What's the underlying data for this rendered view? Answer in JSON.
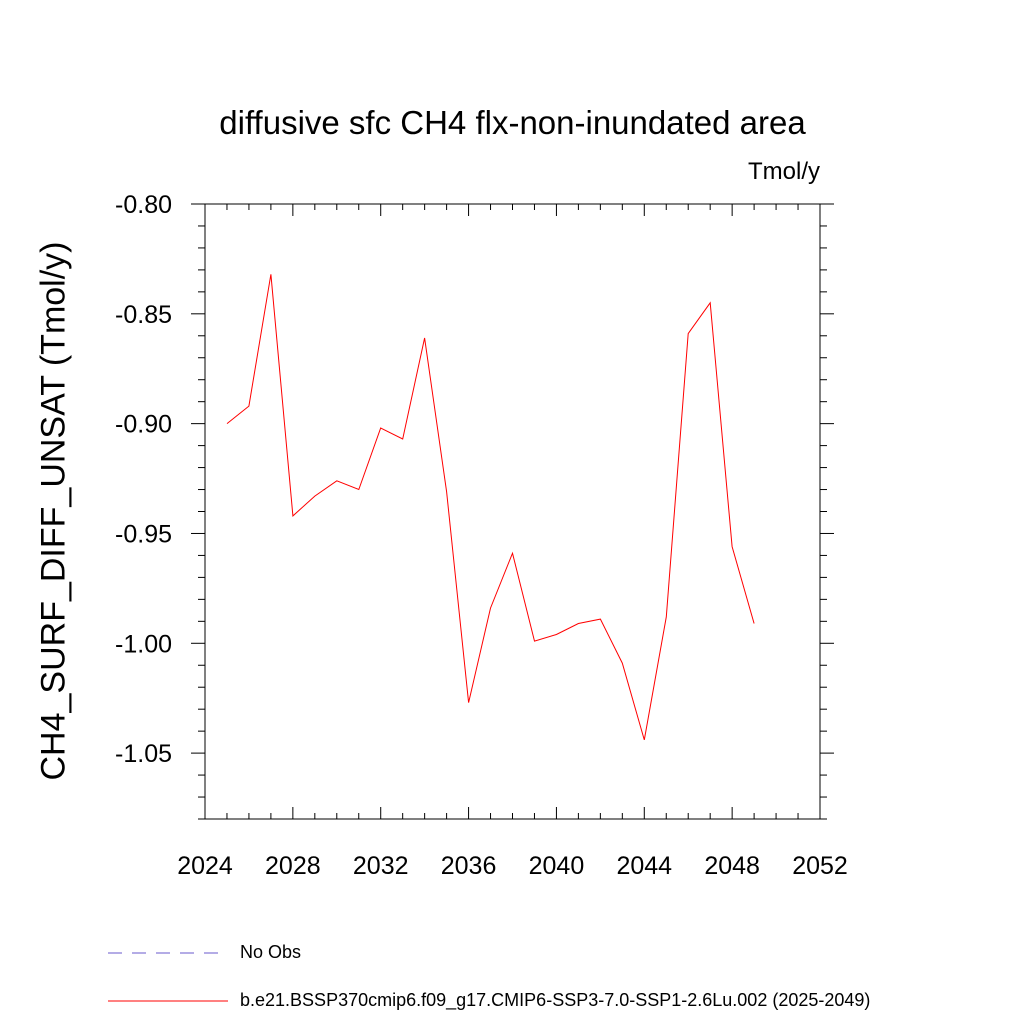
{
  "chart_data": {
    "type": "line",
    "title": "diffusive sfc CH4 flx-non-inundated area",
    "units": "Tmol/y",
    "ylabel": "CH4_SURF_DIFF_UNSAT  (Tmol/y)",
    "xlabel": "",
    "xlim": [
      2024,
      2052
    ],
    "ylim": [
      -1.08,
      -0.8
    ],
    "x_ticks": [
      2024,
      2028,
      2032,
      2036,
      2040,
      2044,
      2048,
      2052
    ],
    "y_ticks": [
      -0.8,
      -0.85,
      -0.9,
      -0.95,
      -1.0,
      -1.05
    ],
    "x_tick_labels": [
      "2024",
      "2028",
      "2032",
      "2036",
      "2040",
      "2044",
      "2048",
      "2052"
    ],
    "y_tick_labels": [
      "-0.80",
      "-0.85",
      "-0.90",
      "-0.95",
      "-1.00",
      "-1.05"
    ],
    "grid": false,
    "legend_position": "bottom",
    "series": [
      {
        "name": "No Obs",
        "color": "#6a5acd",
        "style": "dashed",
        "x": [],
        "values": []
      },
      {
        "name": "b.e21.BSSP370cmip6.f09_g17.CMIP6-SSP3-7.0-SSP1-2.6Lu.002 (2025-2049)",
        "color": "#ff0000",
        "style": "solid",
        "x": [
          2025,
          2026,
          2027,
          2028,
          2029,
          2030,
          2031,
          2032,
          2033,
          2034,
          2035,
          2036,
          2037,
          2038,
          2039,
          2040,
          2041,
          2042,
          2043,
          2044,
          2045,
          2046,
          2047,
          2048,
          2049
        ],
        "values": [
          -0.9,
          -0.892,
          -0.832,
          -0.942,
          -0.933,
          -0.926,
          -0.93,
          -0.902,
          -0.907,
          -0.861,
          -0.931,
          -1.027,
          -0.984,
          -0.959,
          -0.999,
          -0.996,
          -0.991,
          -0.989,
          -1.009,
          -1.044,
          -0.988,
          -0.859,
          -0.845,
          -0.956,
          -0.991
        ]
      }
    ]
  }
}
